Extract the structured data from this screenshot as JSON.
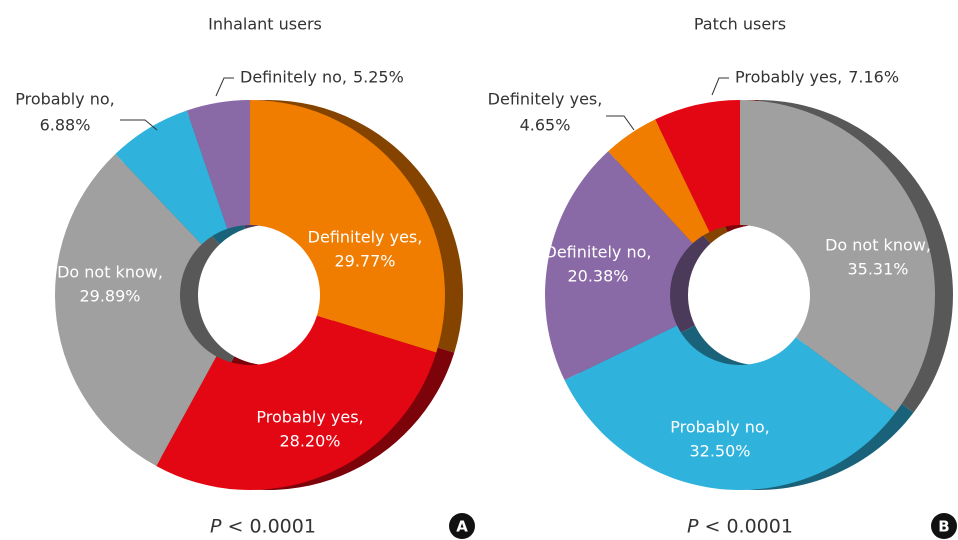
{
  "chart_data": [
    {
      "type": "pie",
      "title": "Inhalant users",
      "categories": [
        "Definitely yes,",
        "Probably yes,",
        "Do not know,",
        "Probably no,",
        "Definitely no,"
      ],
      "values": [
        29.77,
        28.2,
        29.89,
        6.88,
        5.25
      ],
      "value_labels": [
        "29.77%",
        "28.20%",
        "29.89%",
        "6.88%",
        "5.25%"
      ],
      "colors": [
        "#f07c00",
        "#e30613",
        "#a0a0a0",
        "#2fb2dc",
        "#8a6aa6"
      ],
      "annotation": {
        "symbol": "P",
        "text": "< 0.0001"
      },
      "panel": "A"
    },
    {
      "type": "pie",
      "title": "Patch users",
      "categories": [
        "Do not know,",
        "Probably no,",
        "Definitely no,",
        "Definitely yes,",
        "Probably yes,"
      ],
      "values": [
        35.31,
        32.5,
        20.38,
        4.65,
        7.16
      ],
      "value_labels": [
        "35.31%",
        "32.50%",
        "20.38%",
        "4.65%",
        "7.16%"
      ],
      "colors": [
        "#a0a0a0",
        "#2fb2dc",
        "#8a6aa6",
        "#f07c00",
        "#e30613"
      ],
      "annotation": {
        "symbol": "P",
        "text": "< 0.0001"
      },
      "panel": "B"
    }
  ]
}
